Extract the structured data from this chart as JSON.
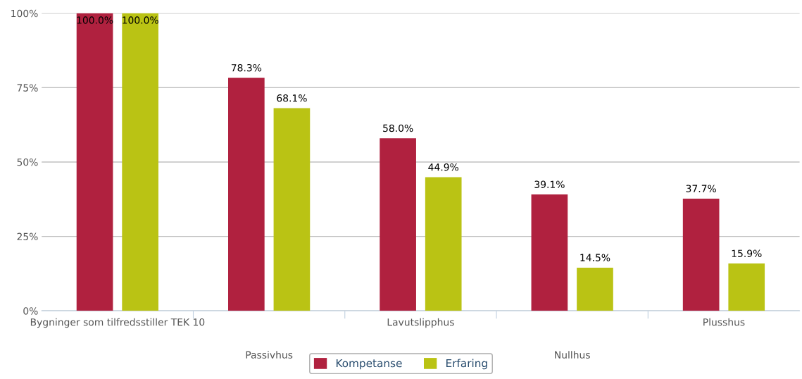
{
  "chart_data": {
    "type": "bar",
    "categories": [
      "Bygninger som tilfredsstiller TEK 10",
      "Passivhus",
      "Lavutslipphus",
      "Nullhus",
      "Plusshus"
    ],
    "series": [
      {
        "name": "Kompetanse",
        "color": "#b0213f",
        "values": [
          100.0,
          78.3,
          58.0,
          39.1,
          37.7
        ],
        "value_labels": [
          "100.0%",
          "78.3%",
          "58.0%",
          "39.1%",
          "37.7%"
        ]
      },
      {
        "name": "Erfaring",
        "color": "#bac314",
        "values": [
          100.0,
          68.1,
          44.9,
          14.5,
          15.9
        ],
        "value_labels": [
          "100.0%",
          "68.1%",
          "44.9%",
          "14.5%",
          "15.9%"
        ]
      }
    ],
    "ylim": [
      0,
      100
    ],
    "yticks": [
      {
        "value": 0,
        "label": "0%"
      },
      {
        "value": 25,
        "label": "25%"
      },
      {
        "value": 50,
        "label": "50%"
      },
      {
        "value": 75,
        "label": "75%"
      },
      {
        "value": 100,
        "label": "100%"
      }
    ],
    "grid": "y",
    "legend": "bottom"
  }
}
